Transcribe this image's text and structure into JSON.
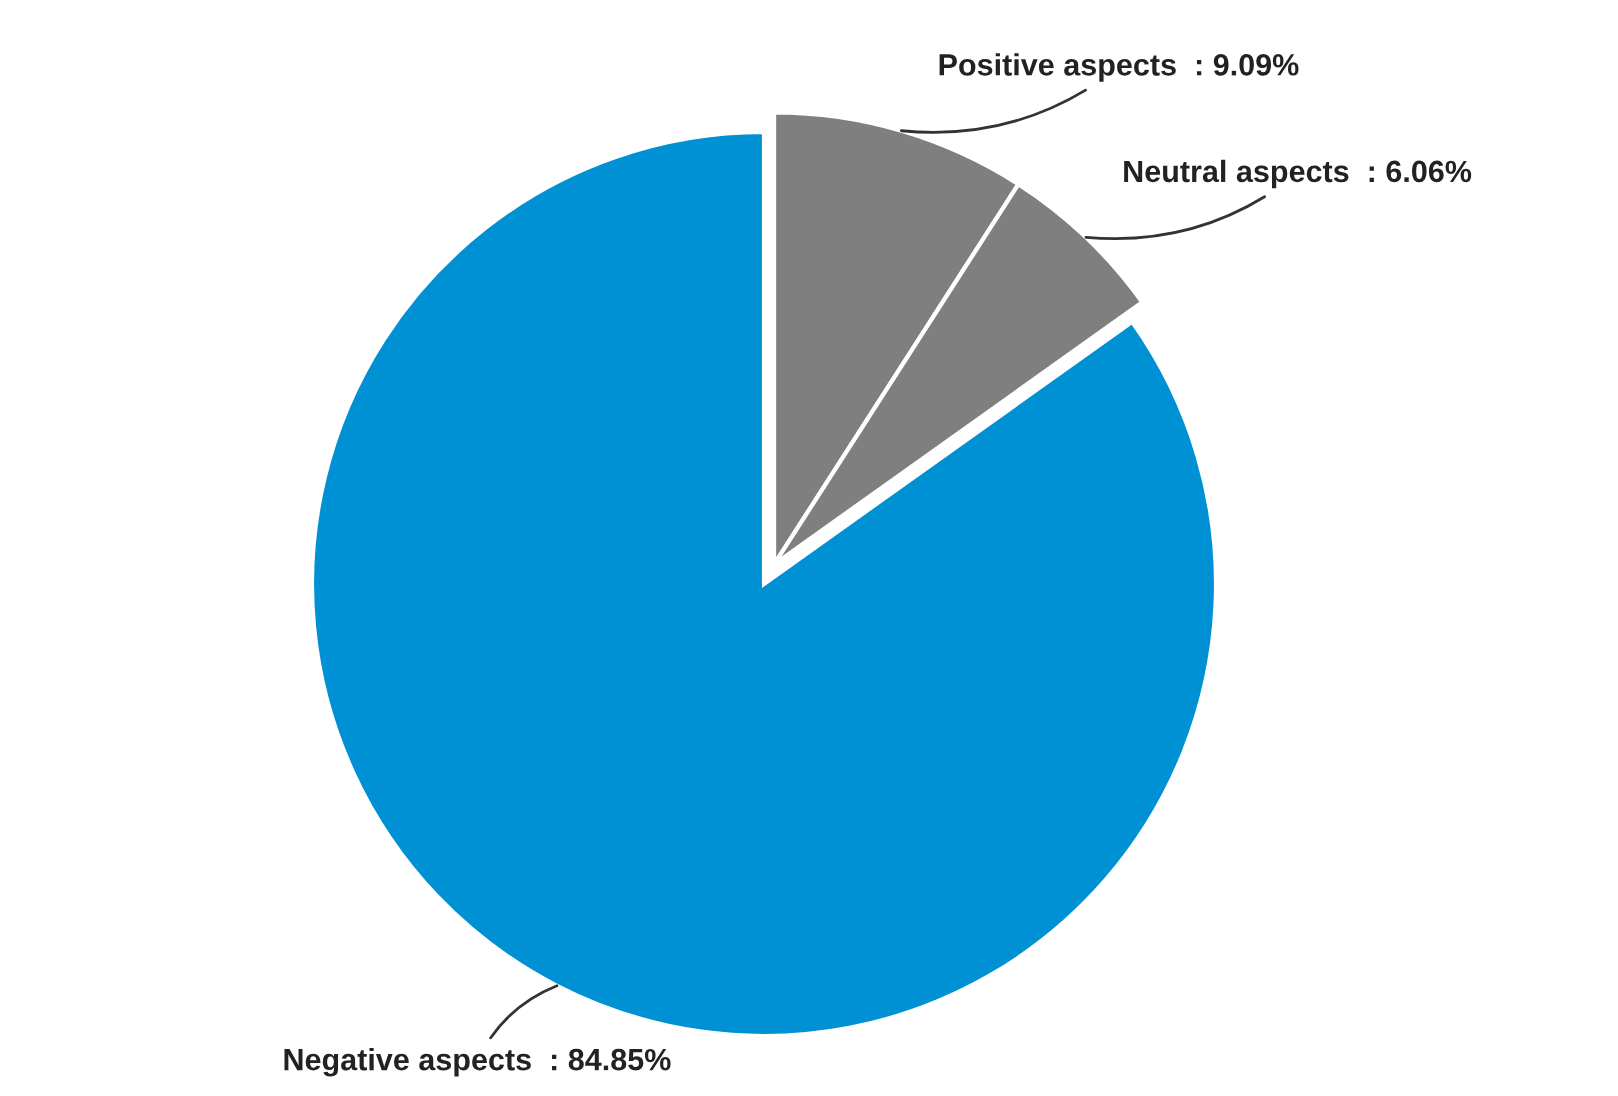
{
  "chart_data": {
    "type": "pie",
    "categories": [
      "Positive aspects",
      "Neutral aspects",
      "Negative aspects"
    ],
    "values": [
      9.09,
      6.06,
      84.85
    ],
    "colors": [
      "#7f7f7f",
      "#7f7f7f",
      "#0091d5"
    ],
    "value_labels": [
      "9.09%",
      "6.06%",
      "84.85%"
    ]
  }
}
